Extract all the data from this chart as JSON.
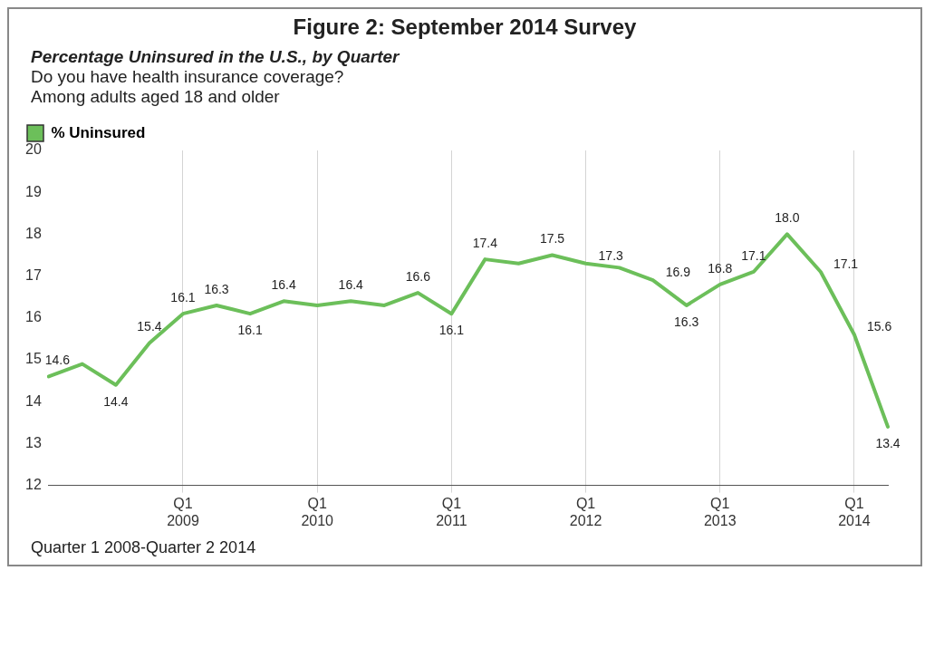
{
  "chart_data": {
    "type": "line",
    "title": "Figure 2: September 2014 Survey",
    "subtitle": "Percentage Uninsured in the U.S., by Quarter",
    "annotations": [
      "Do you have health insurance coverage?",
      "Among adults aged 18 and older",
      "Quarter 1 2008-Quarter 2 2014"
    ],
    "categories": [
      null,
      null,
      null,
      null,
      "Q1\n2009",
      null,
      null,
      null,
      "Q1\n2010",
      null,
      null,
      null,
      "Q1\n2011",
      null,
      null,
      null,
      "Q1\n2012",
      null,
      null,
      null,
      "Q1\n2013",
      null,
      null,
      null,
      "Q1\n2014",
      null
    ],
    "series": [
      {
        "name": "% Uninsured",
        "color": "#6cbf5a",
        "values": [
          14.6,
          14.9,
          14.4,
          15.4,
          16.1,
          16.3,
          16.1,
          16.4,
          16.3,
          16.4,
          16.3,
          16.6,
          16.1,
          17.4,
          17.3,
          17.5,
          17.3,
          17.2,
          16.9,
          16.3,
          16.8,
          17.1,
          18.0,
          17.1,
          15.6,
          13.4
        ],
        "value_labels": [
          "14.6",
          null,
          "14.4",
          "15.4",
          "16.1",
          "16.3",
          "16.1",
          "16.4",
          null,
          "16.4",
          null,
          "16.6",
          "16.1",
          "17.4",
          null,
          "17.5",
          "17.3",
          null,
          "16.9",
          "16.3",
          "16.8",
          "17.1",
          "18.0",
          "17.1",
          "15.6",
          "13.4"
        ]
      }
    ],
    "ylim": [
      12,
      20
    ],
    "yticks": [
      12,
      13,
      14,
      15,
      16,
      17,
      18,
      19,
      20
    ],
    "grid": "x",
    "legend": "top left",
    "marker": "none",
    "line_style": "solid"
  }
}
